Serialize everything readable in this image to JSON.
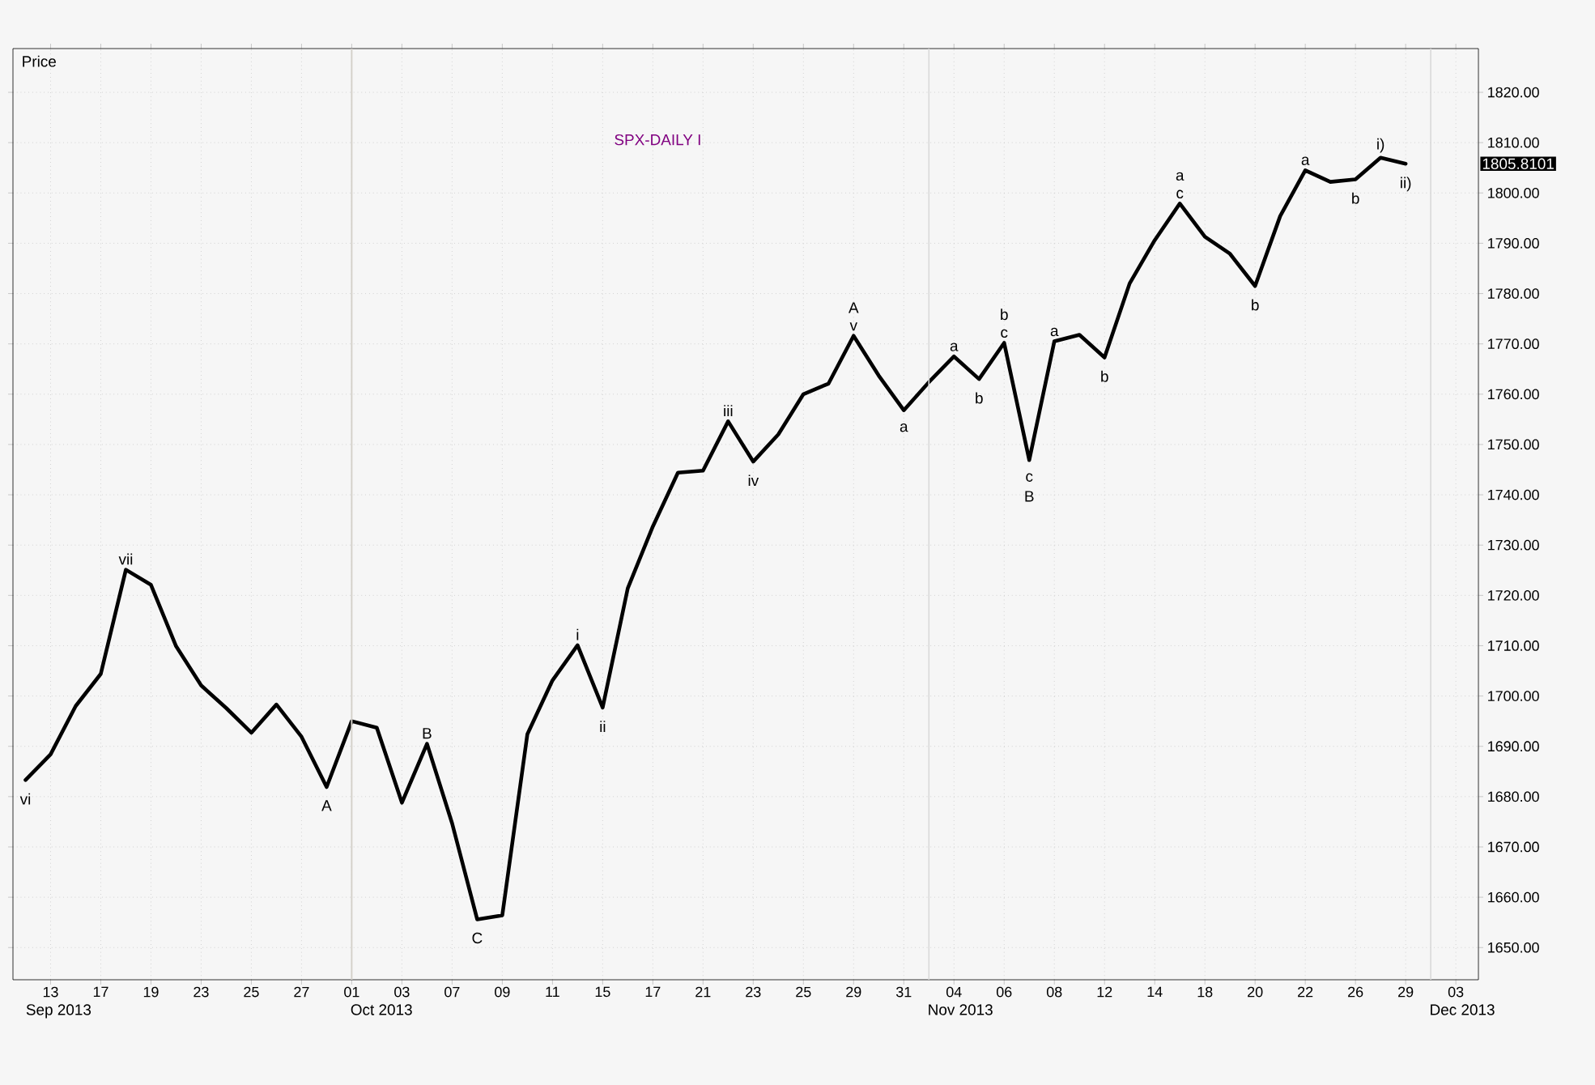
{
  "chart_data": {
    "type": "line",
    "title": "SPX-DAILY  I",
    "ylabel": "Price",
    "categories": [
      null,
      "13",
      null,
      "17",
      null,
      "19",
      null,
      "23",
      null,
      "25",
      null,
      "27",
      null,
      "01",
      null,
      "03",
      null,
      "07",
      null,
      "09",
      null,
      "11",
      null,
      "15",
      null,
      "17",
      null,
      "21",
      null,
      "23",
      null,
      "25",
      null,
      "29",
      null,
      "31",
      null,
      "04",
      null,
      "06",
      null,
      "08",
      null,
      "12",
      null,
      "14",
      null,
      "18",
      null,
      "20",
      null,
      "22",
      null,
      "26",
      null,
      "29",
      null,
      "03"
    ],
    "series": [
      {
        "color": "#000000",
        "values": [
          1683.3,
          1688.4,
          1698.0,
          1704.4,
          1725.1,
          1722.1,
          1709.9,
          1702.1,
          1697.6,
          1692.7,
          1698.3,
          1691.9,
          1681.9,
          1695.0,
          1693.7,
          1678.8,
          1690.5,
          1674.7,
          1655.6,
          1656.4,
          1692.4,
          1703.1,
          1710.1,
          1697.7,
          1721.4,
          1733.7,
          1744.4,
          1744.8,
          1754.6,
          1746.6,
          1752.0,
          1760.0,
          1762.1,
          1771.6,
          1763.7,
          1756.8,
          1762.4,
          1767.5,
          1763.0,
          1770.2,
          1746.9,
          1770.5,
          1771.8,
          1767.3,
          1782.0,
          1790.6,
          1797.9,
          1791.3,
          1787.9,
          1781.5,
          1795.4,
          1804.5,
          1802.2,
          1802.7,
          1807.0,
          1805.8,
          null,
          null
        ]
      }
    ],
    "ylim": [
      1643.6,
      1828.7
    ],
    "yticks": [
      {
        "value": 1650,
        "label": "1650.00"
      },
      {
        "value": 1660,
        "label": "1660.00"
      },
      {
        "value": 1670,
        "label": "1670.00"
      },
      {
        "value": 1680,
        "label": "1680.00"
      },
      {
        "value": 1690,
        "label": "1690.00"
      },
      {
        "value": 1700,
        "label": "1700.00"
      },
      {
        "value": 1710,
        "label": "1710.00"
      },
      {
        "value": 1720,
        "label": "1720.00"
      },
      {
        "value": 1730,
        "label": "1730.00"
      },
      {
        "value": 1740,
        "label": "1740.00"
      },
      {
        "value": 1750,
        "label": "1750.00"
      },
      {
        "value": 1760,
        "label": "1760.00"
      },
      {
        "value": 1770,
        "label": "1770.00"
      },
      {
        "value": 1780,
        "label": "1780.00"
      },
      {
        "value": 1790,
        "label": "1790.00"
      },
      {
        "value": 1800,
        "label": "1800.00"
      },
      {
        "value": 1810,
        "label": "1810.00"
      },
      {
        "value": 1820,
        "label": "1820.00"
      }
    ],
    "grid": true,
    "marker": "none",
    "line_style": "solid",
    "ref_lines": [
      {
        "axis": "x",
        "value": "01",
        "color": "#d4d0c8"
      }
    ],
    "annotations": [
      {
        "text": "vi",
        "y": 1683.3
      },
      {
        "text": "vii",
        "y": 1725.1
      },
      {
        "text": "A",
        "y": 1681.9
      },
      {
        "text": "B",
        "y": 1690.5
      },
      {
        "text": "C",
        "y": 1655.6
      },
      {
        "text": "i",
        "y": 1710.1
      },
      {
        "text": "ii",
        "y": 1697.7
      },
      {
        "text": "iii",
        "y": 1754.6
      },
      {
        "text": "iv",
        "y": 1746.6
      },
      {
        "text": "v",
        "y": 1771.6
      },
      {
        "text": "A",
        "y": 1771.6
      },
      {
        "text": "a",
        "y": 1756.8
      },
      {
        "text": "a",
        "y": 1767.5
      },
      {
        "text": "b",
        "y": 1763.0
      },
      {
        "text": "c",
        "y": 1770.2
      },
      {
        "text": "b",
        "y": 1770.2
      },
      {
        "text": "c",
        "y": 1746.9
      },
      {
        "text": "B",
        "y": 1746.9
      },
      {
        "text": "a",
        "y": 1770.5
      },
      {
        "text": "b",
        "y": 1767.3
      },
      {
        "text": "c",
        "y": 1797.9
      },
      {
        "text": "a",
        "y": 1797.9
      },
      {
        "text": "b",
        "y": 1781.5
      },
      {
        "text": "a",
        "y": 1804.5
      },
      {
        "text": "b",
        "y": 1802.7
      },
      {
        "text": "i)",
        "y": 1807.0
      },
      {
        "text": "ii)",
        "y": 1805.8
      },
      "Sep 2013",
      "Oct 2013",
      "Nov 2013",
      "Dec 2013",
      "1805.8101"
    ]
  }
}
